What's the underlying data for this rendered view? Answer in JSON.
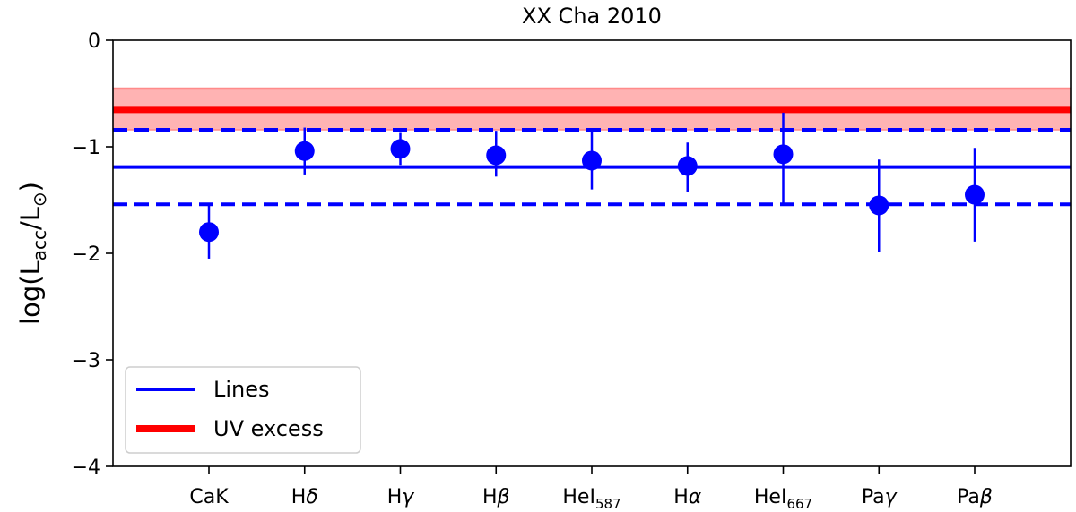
{
  "chart_data": {
    "type": "scatter",
    "title": "XX Cha 2010",
    "xlabel": "",
    "ylabel": {
      "base": "log(L",
      "sub": "acc",
      "mid": "/L",
      "sym": "⊙",
      "end": ")"
    },
    "ylim": [
      -4,
      0
    ],
    "yticks": [
      0,
      -1,
      -2,
      -3,
      -4
    ],
    "ytick_labels": [
      "0",
      "−1",
      "−2",
      "−3",
      "−4"
    ],
    "grid": false,
    "categories": [
      {
        "base": "CaK",
        "italic": "",
        "sub": ""
      },
      {
        "base": "H",
        "italic": "δ",
        "sub": ""
      },
      {
        "base": "H",
        "italic": "γ",
        "sub": ""
      },
      {
        "base": "H",
        "italic": "β",
        "sub": ""
      },
      {
        "base": "HeI",
        "italic": "",
        "sub": "587"
      },
      {
        "base": "H",
        "italic": "α",
        "sub": ""
      },
      {
        "base": "HeI",
        "italic": "",
        "sub": "667"
      },
      {
        "base": "Pa",
        "italic": "γ",
        "sub": ""
      },
      {
        "base": "Pa",
        "italic": "β",
        "sub": ""
      }
    ],
    "series": [
      {
        "name": "Lines",
        "color": "#0000ff",
        "values": [
          -1.8,
          -1.04,
          -1.02,
          -1.08,
          -1.13,
          -1.18,
          -1.07,
          -1.55,
          -1.45
        ],
        "err_low": [
          -2.05,
          -1.26,
          -1.17,
          -1.28,
          -1.4,
          -1.42,
          -1.53,
          -1.99,
          -1.89
        ],
        "err_high": [
          -1.55,
          -0.82,
          -0.87,
          -0.85,
          -0.86,
          -0.96,
          -0.68,
          -1.12,
          -1.01
        ]
      }
    ],
    "reference_lines": [
      {
        "series": "Lines",
        "color": "#0000ff",
        "mean": -1.19,
        "low": -1.54,
        "high": -0.84,
        "band_style": "dashed"
      },
      {
        "series": "UV excess",
        "color": "#ff0000",
        "mean": -0.65,
        "low": -0.84,
        "high": -0.45,
        "band_style": "shaded",
        "band_color": "#ffb3b3"
      }
    ],
    "legend": {
      "position": "lower-left",
      "entries": [
        {
          "label": "Lines",
          "color": "#0000ff"
        },
        {
          "label": "UV excess",
          "color": "#ff0000"
        }
      ]
    }
  }
}
